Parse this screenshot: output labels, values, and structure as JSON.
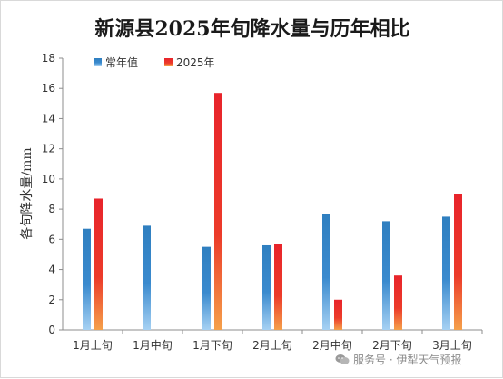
{
  "chart_data": {
    "type": "bar",
    "title": "新源县2025年旬降水量与历年相比",
    "ylabel": "各旬降水量/mm",
    "xlabel": "",
    "ylim": [
      0,
      18
    ],
    "yticks": [
      0,
      2,
      4,
      6,
      8,
      10,
      12,
      14,
      16,
      18
    ],
    "categories": [
      "1月上旬",
      "1月中旬",
      "1月下旬",
      "2月上旬",
      "2月中旬",
      "2月下旬",
      "3月上旬"
    ],
    "series": [
      {
        "name": "常年值",
        "values": [
          6.7,
          6.9,
          5.5,
          5.6,
          7.7,
          7.2,
          7.5
        ],
        "color": "#2f7fc0",
        "color_light": "#8fc3ee"
      },
      {
        "name": "2025年",
        "values": [
          8.7,
          null,
          15.7,
          5.7,
          2.0,
          3.6,
          9.0
        ],
        "color": "#e8242b",
        "color_light": "#f5a04a"
      }
    ],
    "legend_position": "top-left",
    "grid": false
  },
  "watermark": {
    "text": "服务号 · 伊犁天气预报",
    "icon": "wechat-icon"
  }
}
